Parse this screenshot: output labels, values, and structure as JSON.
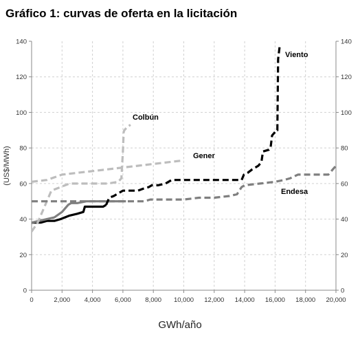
{
  "chart_data": {
    "type": "line",
    "title": "Gráfico 1: curvas de oferta en la licitación",
    "xlabel": "GWh/año",
    "ylabel": "(US$/MWh)",
    "xlim": [
      0,
      20000
    ],
    "ylim": [
      0,
      140
    ],
    "x_ticks": [
      "0",
      "2,000",
      "4,000",
      "6,000",
      "8,000",
      "10,000",
      "12,000",
      "14,000",
      "16,000",
      "18,000",
      "20,000"
    ],
    "y_ticks": [
      "0",
      "20",
      "40",
      "60",
      "80",
      "100",
      "120",
      "140"
    ],
    "grid": true,
    "secondary_y_axis": true,
    "series": [
      {
        "name": "Colbún",
        "color": "#bdbdbd",
        "style": "dashed",
        "x": [
          0,
          400,
          700,
          900,
          1300,
          1900,
          2500,
          4000,
          5000,
          5700,
          5900,
          6000,
          6050,
          6100,
          6300,
          6500
        ],
        "y": [
          33,
          38,
          44,
          48,
          56,
          58,
          60,
          60,
          60,
          61,
          63,
          78,
          89,
          90,
          92,
          93
        ]
      },
      {
        "name": "Gener",
        "color": "#bdbdbd",
        "style": "dashed",
        "x": [
          0,
          1000,
          2000,
          3000,
          4000,
          5000,
          6000,
          7000,
          8000,
          9000,
          10000
        ],
        "y": [
          61,
          62,
          65,
          66,
          67,
          68,
          69,
          70,
          71,
          72,
          73
        ]
      },
      {
        "name": "Endesa",
        "color": "#7f7f7f",
        "style": "dashed",
        "x": [
          0,
          6000,
          6800,
          7400,
          7800,
          9000,
          10000,
          11000,
          12000,
          13000,
          13500,
          13800,
          14000,
          15000,
          16000,
          16600,
          17000,
          17500,
          18500,
          19000,
          19500,
          20000
        ],
        "y": [
          50,
          50,
          50,
          50,
          51,
          51,
          51,
          52,
          52,
          53,
          54,
          58,
          59,
          60,
          61,
          62,
          63,
          65,
          65,
          65,
          65,
          70
        ]
      },
      {
        "name": "Viento",
        "color": "#000000",
        "style": "dashed",
        "x": [
          4900,
          5100,
          5400,
          5800,
          6000,
          6500,
          7000,
          7300,
          7700,
          7900,
          8300,
          8800,
          9200,
          11000,
          12000,
          13000,
          13800,
          13950,
          14200,
          14500,
          14900,
          15100,
          15200,
          15600,
          15700,
          15800,
          16000,
          16050,
          16150,
          16200,
          16300
        ],
        "y": [
          48,
          52,
          53,
          55,
          56,
          56,
          56,
          57,
          58,
          59,
          59,
          60,
          62,
          62,
          62,
          62,
          62,
          65,
          66,
          68,
          70,
          72,
          78,
          79,
          80,
          87,
          89,
          90,
          90,
          130,
          137
        ]
      },
      {
        "name": "",
        "color": "#000000",
        "style": "solid",
        "x": [
          0,
          600,
          1000,
          1500,
          1900,
          2200,
          2500,
          3000,
          3400,
          3500,
          4000,
          4700,
          4900
        ],
        "y": [
          38,
          38,
          39,
          39,
          40,
          41,
          42,
          43,
          44,
          47,
          47,
          47,
          48
        ]
      },
      {
        "name": "",
        "color": "#7f7f7f",
        "style": "solid",
        "x": [
          0,
          1000,
          1500,
          2000,
          2400,
          2600,
          3000,
          3600,
          4000,
          4500,
          5000,
          5200,
          6200
        ],
        "y": [
          38,
          40,
          41,
          44,
          48,
          49,
          49,
          50,
          50,
          50,
          50,
          50,
          50
        ]
      }
    ]
  }
}
